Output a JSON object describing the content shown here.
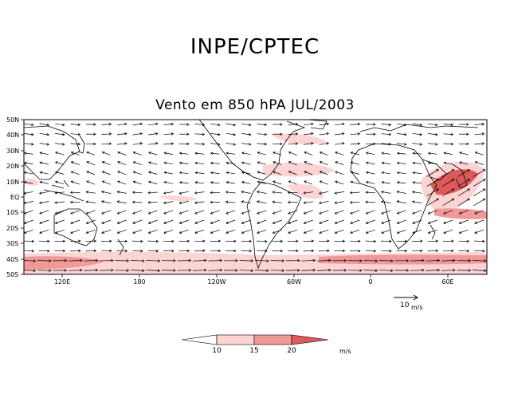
{
  "header": {
    "org_title": "INPE/CPTEC",
    "plot_title": "Vento em 850 hPA JUL/2003"
  },
  "map": {
    "lat_labels": [
      "50N",
      "40N",
      "30N",
      "20N",
      "10N",
      "EQ",
      "10S",
      "20S",
      "30S",
      "40S",
      "50S"
    ],
    "lon_labels": [
      "120E",
      "180",
      "120W",
      "60W",
      "0",
      "60E"
    ],
    "shading_colors": {
      "light": "#fcd4d4",
      "medium": "#f19898",
      "strong": "#dd5a5a"
    }
  },
  "reference_vector": {
    "value": "10",
    "unit": "m/s"
  },
  "colorbar": {
    "ticks": [
      "10",
      "15",
      "20"
    ],
    "unit": "m/s",
    "colors": [
      "#ffffff",
      "#fcd4d4",
      "#f19898",
      "#dd5a5a"
    ]
  }
}
